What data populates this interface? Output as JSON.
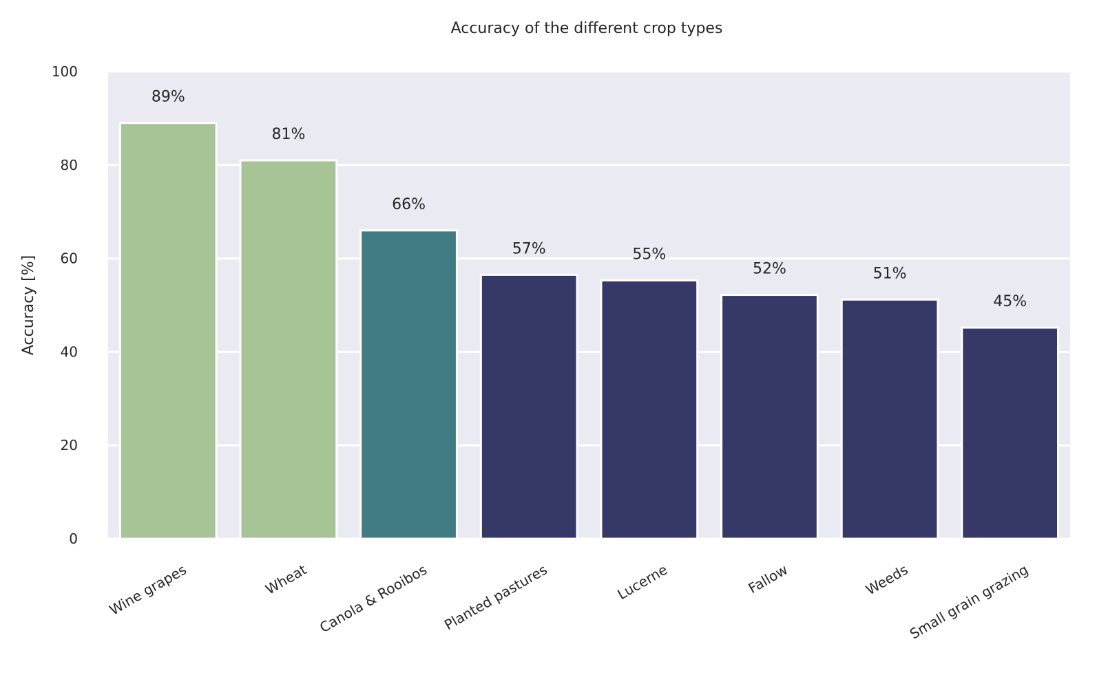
{
  "chart_data": {
    "type": "bar",
    "title": "Accuracy of the different crop types",
    "xlabel": "",
    "ylabel": "Accuracy [%]",
    "ylim": [
      0,
      100
    ],
    "yticks": [
      0,
      20,
      40,
      60,
      80,
      100
    ],
    "grid": true,
    "categories": [
      "Wine grapes",
      "Wheat",
      "Canola & Rooibos",
      "Planted pastures",
      "Lucerne",
      "Fallow",
      "Weeds",
      "Small grain grazing"
    ],
    "values": [
      89,
      81,
      66,
      56.5,
      55.3,
      52.2,
      51.2,
      45.2
    ],
    "data_labels": [
      "89%",
      "81%",
      "66%",
      "57%",
      "55%",
      "52%",
      "51%",
      "45%"
    ],
    "colors": [
      "#a7c497",
      "#a7c497",
      "#417b84",
      "#363967",
      "#363967",
      "#363967",
      "#363967",
      "#363967"
    ],
    "background_color": "#eaeaf2",
    "grid_color": "#ffffff"
  }
}
